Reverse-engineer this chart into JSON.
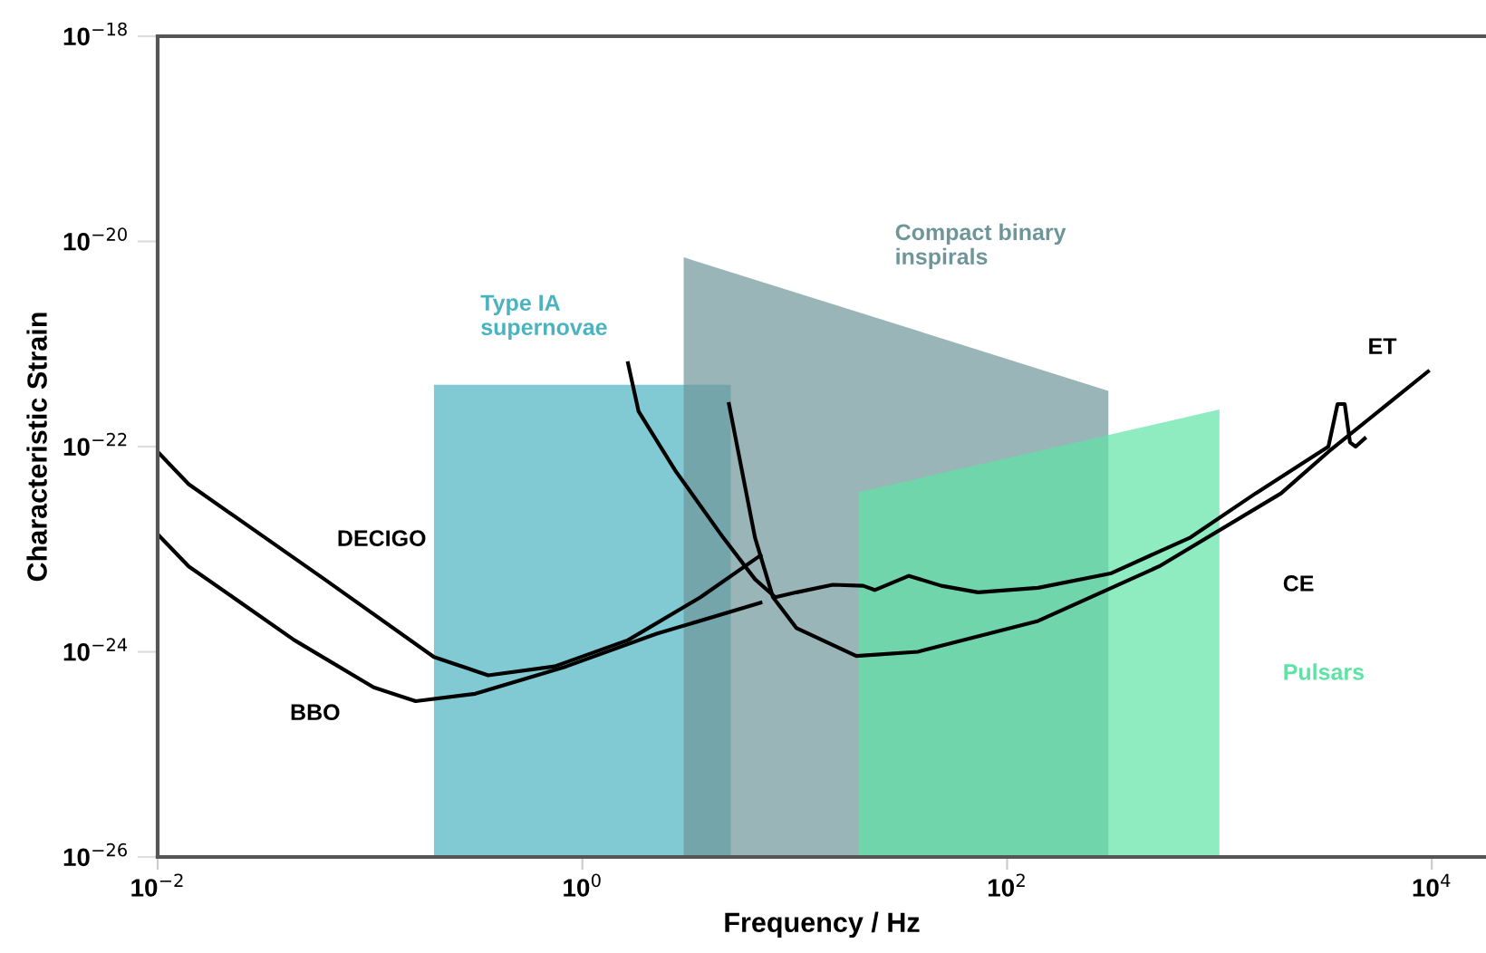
{
  "chart_data": {
    "type": "line",
    "xlabel": "Frequency / Hz",
    "ylabel": "Characteristic Strain",
    "log": "xy",
    "grid": false,
    "marker": "none",
    "line_style": "solid",
    "xlim": [
      0.01,
      18000
    ],
    "ylim": [
      1e-26,
      1e-18
    ],
    "xticks": [
      {
        "value": 0.01,
        "label": "10$^{−2}$"
      },
      {
        "value": 1,
        "label": "10$^{0}$"
      },
      {
        "value": 100,
        "label": "10$^{2}$"
      },
      {
        "value": 10000,
        "label": "10$^{4}$"
      }
    ],
    "yticks": [
      {
        "value": 1e-26,
        "label": "10$^{−26}$"
      },
      {
        "value": 1e-24,
        "label": "10$^{−24}$"
      },
      {
        "value": 1e-22,
        "label": "10$^{−22}$"
      },
      {
        "value": 1e-20,
        "label": "10$^{−20}$"
      },
      {
        "value": 1e-18,
        "label": "10$^{−18}$"
      }
    ],
    "series": [
      {
        "type": "area",
        "name": "Type IA\nsupernovae",
        "color": "#4bb3c0",
        "x": [
          0.2,
          5.0
        ],
        "values": [
          4e-22,
          4e-22
        ]
      },
      {
        "type": "area",
        "name": "Compact binary\ninspirals",
        "color": "#6e9599",
        "x": [
          3.0,
          300
        ],
        "values": [
          7e-21,
          3.5e-22
        ]
      },
      {
        "type": "area",
        "name": "Pulsars",
        "color": "#5fe3a5",
        "x": [
          20,
          1000
        ],
        "values": [
          3.6e-23,
          2.3e-22
        ]
      },
      {
        "color": "#000000",
        "x": [
          0.01,
          0.014,
          0.061,
          0.2,
          0.36,
          0.74,
          1.64,
          3.6,
          6.9
        ],
        "values": [
          8.9e-23,
          4.3e-23,
          5.1e-24,
          8.9e-25,
          5.9e-25,
          7.2e-25,
          1.3e-24,
          3.4e-24,
          8.7e-24
        ]
      },
      {
        "color": "#000000",
        "x": [
          0.01,
          0.014,
          0.044,
          0.104,
          0.164,
          0.313,
          0.84,
          2.24,
          6.9
        ],
        "values": [
          1.4e-23,
          6.8e-24,
          1.3e-24,
          4.5e-25,
          3.3e-25,
          3.9e-25,
          7.2e-25,
          1.5e-24,
          3e-24
        ]
      },
      {
        "color": "#000000",
        "x": [
          1.64,
          1.84,
          2.73,
          4.6,
          6.5,
          8.1,
          10.2,
          15.1,
          21,
          23.8,
          34.5,
          49,
          73,
          140,
          307,
          730,
          1480,
          3260,
          3600,
          3890,
          4120,
          4380,
          4830
        ],
        "values": [
          6.5e-22,
          2.2e-22,
          5.9e-23,
          1.3e-23,
          5.1e-24,
          3.4e-24,
          3.8e-24,
          4.5e-24,
          4.4e-24,
          4e-24,
          5.5e-24,
          4.4e-24,
          3.8e-24,
          4.2e-24,
          5.8e-24,
          1.3e-23,
          3.5e-23,
          1e-22,
          2.6e-22,
          2.6e-22,
          1.1e-22,
          1e-22,
          1.2e-22
        ]
      },
      {
        "color": "#000000",
        "x": [
          4.9,
          6.5,
          7.9,
          10.2,
          19.5,
          38,
          140,
          520,
          1950,
          3260,
          9600
        ],
        "values": [
          2.6e-22,
          1.3e-23,
          3.4e-24,
          1.7e-24,
          9.1e-25,
          1e-24,
          2e-24,
          6.8e-24,
          3.5e-23,
          8.9e-23,
          5.4e-22
        ]
      }
    ],
    "annotations": [
      "DECIGO",
      "BBO",
      "CE",
      "ET"
    ]
  }
}
